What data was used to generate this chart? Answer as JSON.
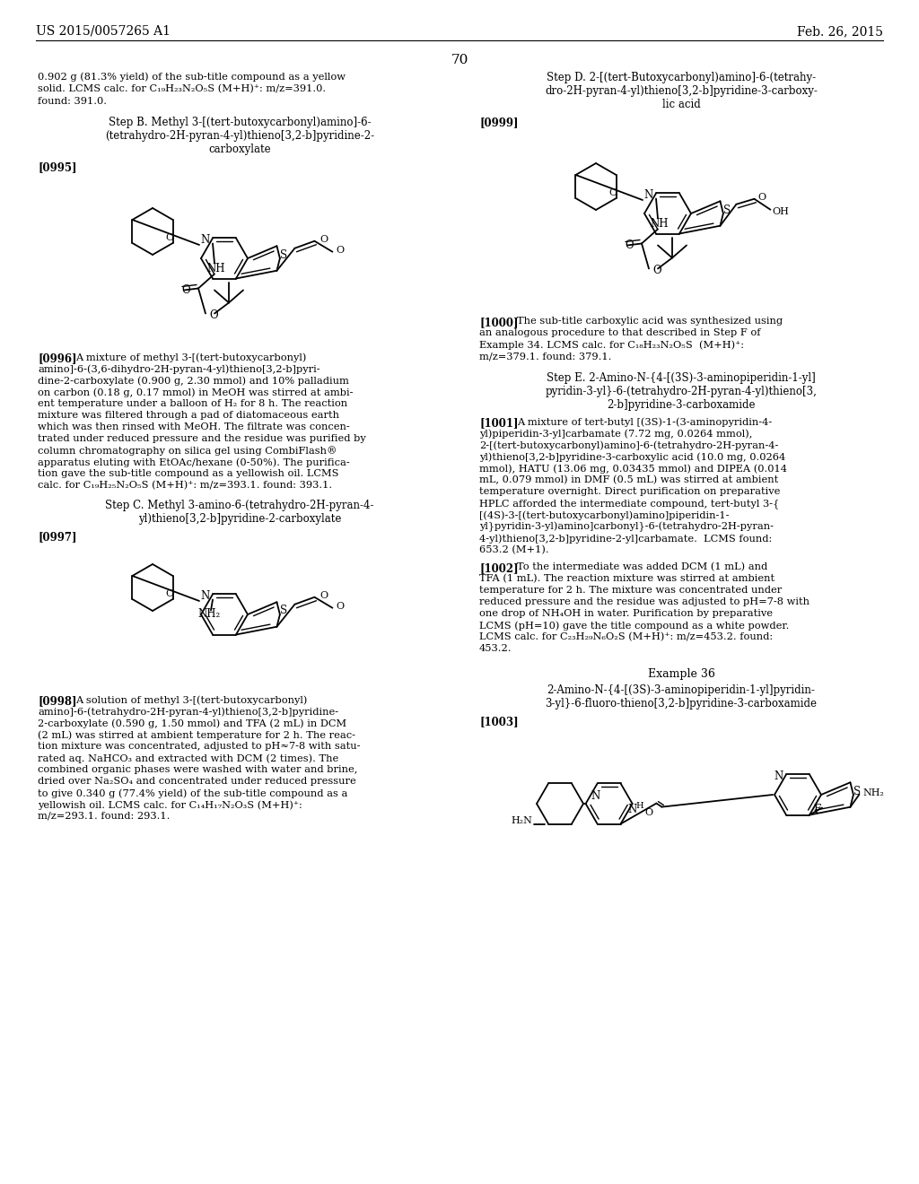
{
  "bg": "#ffffff",
  "header_left": "US 2015/0057265 A1",
  "header_right": "Feb. 26, 2015",
  "page_num": "70"
}
